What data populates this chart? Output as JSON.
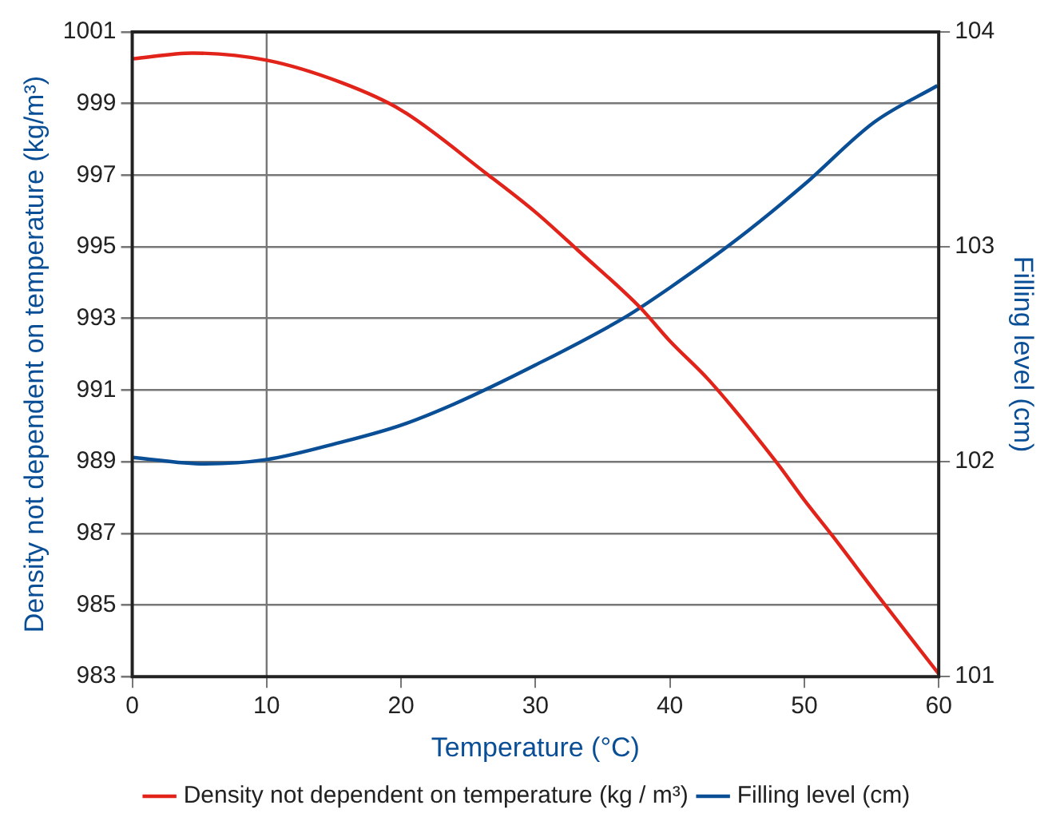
{
  "chart_data": {
    "type": "line",
    "xlabel": "Temperature (°C)",
    "ylabel": "Density not dependent on temperature (kg/m³)",
    "y2label": "Filling level (cm)",
    "xlim": [
      0,
      60
    ],
    "xticks": [
      0,
      10,
      20,
      30,
      40,
      50,
      60
    ],
    "ylim": [
      983,
      1001
    ],
    "yticks": [
      983,
      985,
      987,
      989,
      991,
      993,
      995,
      997,
      999,
      1001
    ],
    "y2lim": [
      101,
      104
    ],
    "y2ticks": [
      101,
      102,
      103,
      104
    ],
    "grid": "y",
    "legend": "bottom",
    "marker": "none",
    "line_style": "solid",
    "ref_lines": [
      {
        "axis": "x",
        "value": 10,
        "color": "#777777"
      }
    ],
    "series": [
      {
        "name": "Density not dependent on temperature (kg / m³)",
        "color": "#e2231a",
        "x": [
          0,
          4.5,
          10,
          15.6,
          20,
          26.3,
          30,
          33.2,
          37.8,
          40,
          42.9,
          47.9,
          50,
          52.1,
          55.5,
          60
        ],
        "values": [
          1000.25,
          1000.41,
          1000.21,
          999.58,
          998.82,
          997.06,
          995.97,
          994.89,
          993.3,
          992.37,
          991.28,
          989.0,
          987.93,
          986.93,
          985.25,
          983.08
        ]
      },
      {
        "name": "Filling level (cm)",
        "color": "#0a4f96",
        "axis": "y2",
        "x": [
          0,
          5.4,
          10,
          15.5,
          20,
          24,
          30,
          36.6,
          40,
          45.1,
          50,
          55.2,
          59.9
        ],
        "values": [
          102.02,
          101.99,
          102.01,
          102.09,
          102.17,
          102.27,
          102.45,
          102.67,
          102.81,
          103.04,
          103.29,
          103.58,
          103.75
        ]
      }
    ]
  }
}
